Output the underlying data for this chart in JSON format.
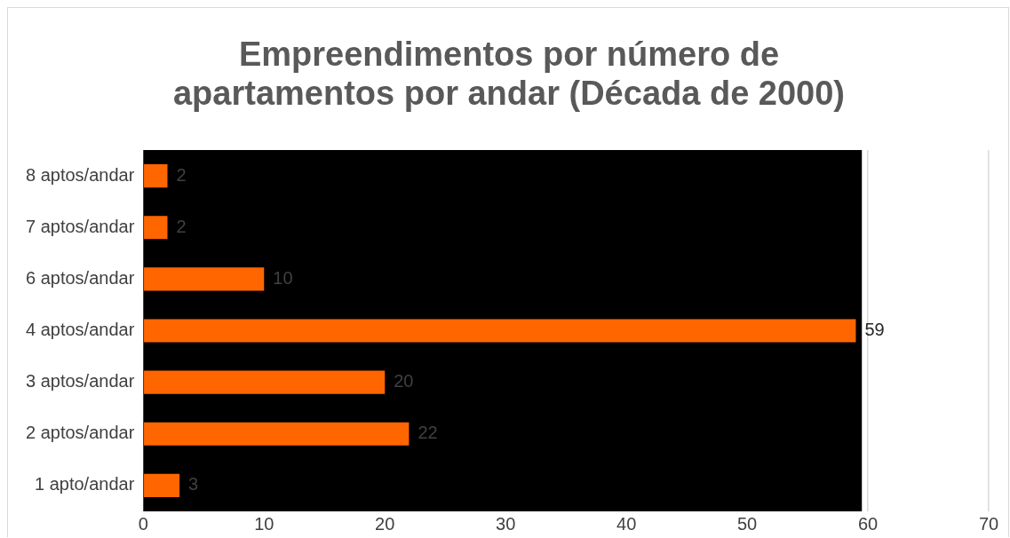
{
  "chart_data": {
    "type": "bar",
    "orientation": "horizontal",
    "title": "Empreendimentos por número de apartamentos por andar (Década de 2000)",
    "categories": [
      "8 aptos/andar",
      "7 aptos/andar",
      "6 aptos/andar",
      "4 aptos/andar",
      "3 aptos/andar",
      "2 aptos/andar",
      "1 apto/andar"
    ],
    "values": [
      2,
      2,
      10,
      59,
      20,
      22,
      3
    ],
    "color": "#ff6600",
    "xlim": [
      0,
      70
    ],
    "xticks": [
      0,
      10,
      20,
      30,
      40,
      50,
      60,
      70
    ],
    "grid": "x",
    "bands": [
      {
        "axis": "x",
        "from": 0,
        "to": 59.5,
        "color": "#000000"
      }
    ],
    "data_labels": true,
    "legend": false
  }
}
